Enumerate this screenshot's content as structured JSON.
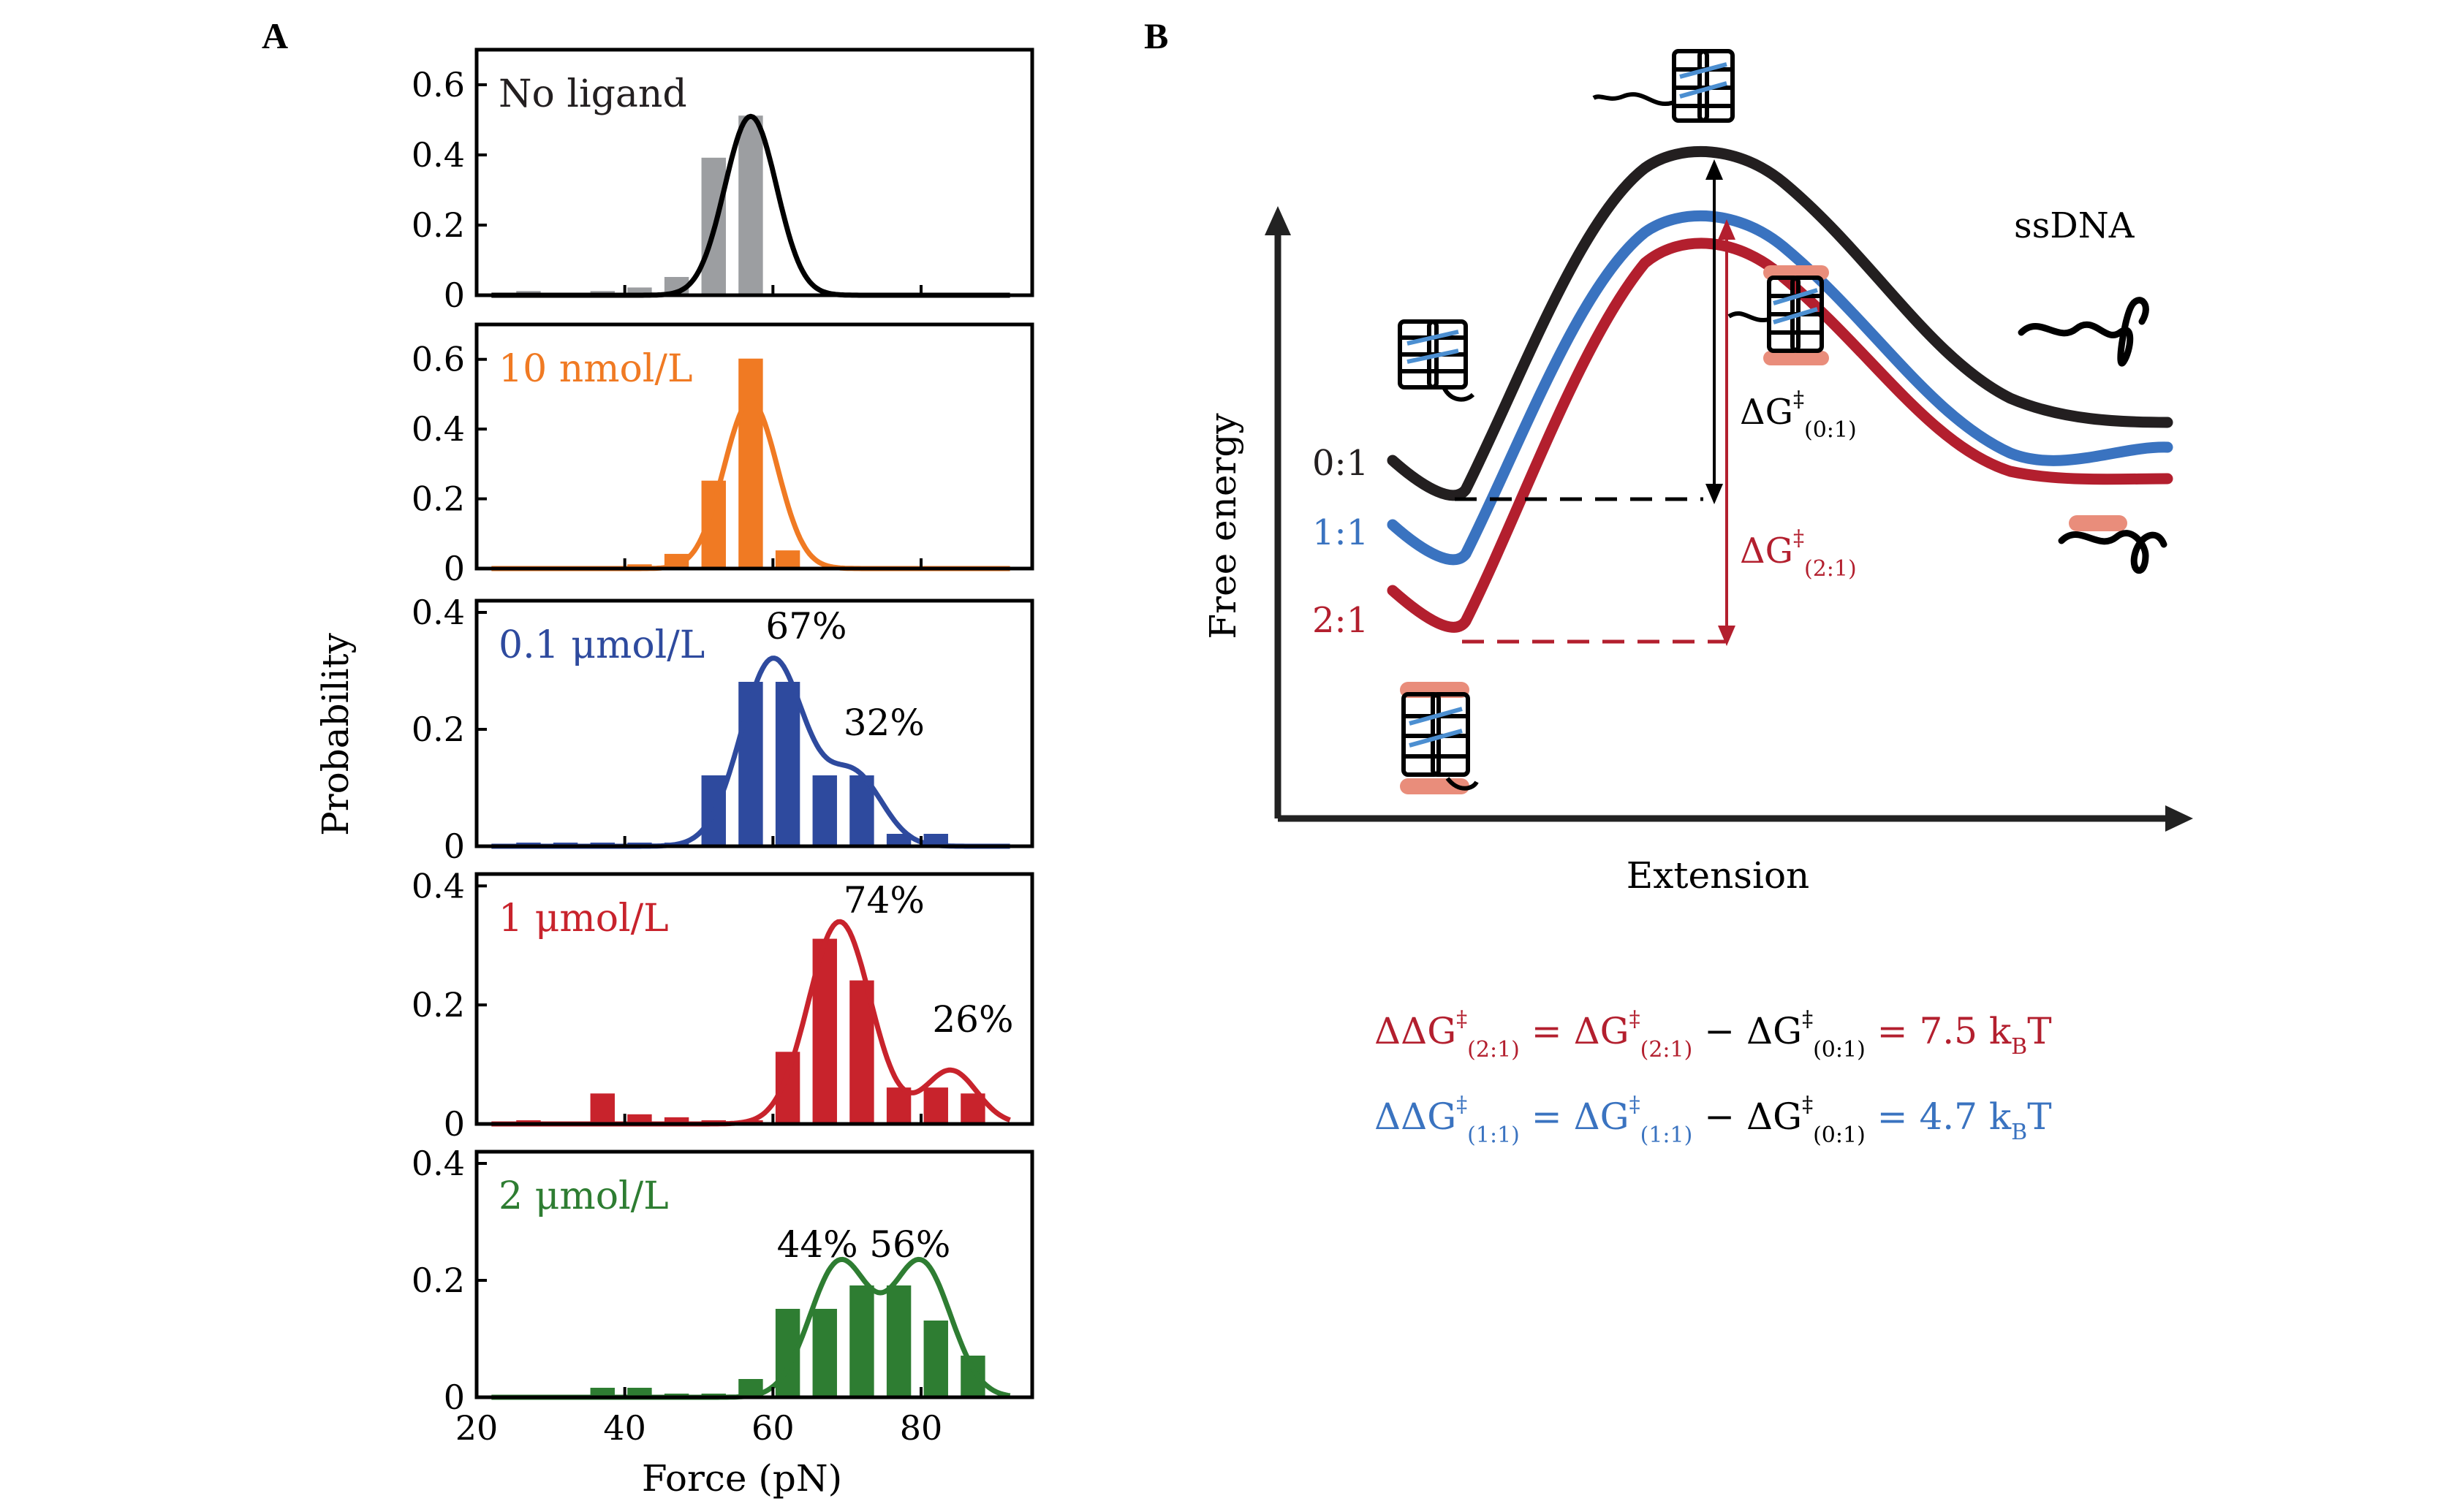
{
  "panels": {
    "a": "A",
    "b": "B"
  },
  "chart_data": [
    {
      "type": "bar",
      "label": "No ligand",
      "color": "#9c9ea1",
      "line_color": "#000000",
      "x": [
        27,
        37,
        42,
        47,
        52,
        57
      ],
      "values": [
        0.01,
        0.01,
        0.02,
        0.05,
        0.39,
        0.51
      ],
      "yticks": [
        "0",
        "0.2",
        "0.4",
        "0.6"
      ],
      "ylim": [
        0,
        0.7
      ],
      "fit": [
        {
          "mu": 57,
          "sigma": 3.5,
          "amp": 0.51
        }
      ],
      "annotations": []
    },
    {
      "type": "bar",
      "label": "10 nmol/L",
      "color": "#f07a23",
      "line_color": "#f07a23",
      "x": [
        42,
        47,
        52,
        57,
        62
      ],
      "values": [
        0.01,
        0.04,
        0.25,
        0.6,
        0.05
      ],
      "yticks": [
        "0",
        "0.2",
        "0.4",
        "0.6"
      ],
      "ylim": [
        0,
        0.7
      ],
      "fit": [
        {
          "mu": 57,
          "sigma": 3.6,
          "amp": 0.48
        }
      ],
      "annotations": []
    },
    {
      "type": "bar",
      "label": "0.1 μmol/L",
      "color": "#2e4a9e",
      "line_color": "#2e4a9e",
      "x": [
        27,
        32,
        37,
        42,
        47,
        52,
        57,
        62,
        67,
        72,
        77,
        82
      ],
      "values": [
        0.005,
        0.005,
        0.005,
        0.005,
        0.005,
        0.12,
        0.28,
        0.28,
        0.12,
        0.12,
        0.02,
        0.02
      ],
      "yticks": [
        "0",
        "0.2",
        "0.4"
      ],
      "ylim": [
        0,
        0.42
      ],
      "fit": [
        {
          "mu": 60,
          "sigma": 4.3,
          "amp": 0.32
        },
        {
          "mu": 71,
          "sigma": 3.8,
          "amp": 0.12
        }
      ],
      "annotations": [
        {
          "text": "67%",
          "x": 64.5,
          "y": 0.355
        },
        {
          "text": "32%",
          "x": 75,
          "y": 0.19
        }
      ]
    },
    {
      "type": "bar",
      "label": "1 μmol/L",
      "color": "#c8232c",
      "line_color": "#c8232c",
      "x": [
        27,
        37,
        42,
        47,
        52,
        57,
        62,
        67,
        72,
        77,
        82,
        87
      ],
      "values": [
        0.005,
        0.05,
        0.015,
        0.01,
        0.005,
        0.005,
        0.12,
        0.31,
        0.24,
        0.06,
        0.06,
        0.05
      ],
      "yticks": [
        "0",
        "0.2",
        "0.4"
      ],
      "ylim": [
        0,
        0.42
      ],
      "fit": [
        {
          "mu": 69,
          "sigma": 4.2,
          "amp": 0.34
        },
        {
          "mu": 84,
          "sigma": 3.5,
          "amp": 0.09
        }
      ],
      "annotations": [
        {
          "text": "74%",
          "x": 75,
          "y": 0.355
        },
        {
          "text": "26%",
          "x": 87,
          "y": 0.155
        }
      ]
    },
    {
      "type": "bar",
      "label": "2 μmol/L",
      "color": "#2e7d32",
      "line_color": "#2e7d32",
      "x": [
        37,
        42,
        47,
        52,
        57,
        62,
        67,
        72,
        77,
        82,
        87
      ],
      "values": [
        0.015,
        0.015,
        0.005,
        0.005,
        0.03,
        0.15,
        0.15,
        0.19,
        0.19,
        0.13,
        0.07
      ],
      "yticks": [
        "0",
        "0.2",
        "0.4"
      ],
      "ylim": [
        0,
        0.42
      ],
      "fit": [
        {
          "mu": 69,
          "sigma": 4.0,
          "amp": 0.23
        },
        {
          "mu": 80,
          "sigma": 4.0,
          "amp": 0.23
        }
      ],
      "annotations": [
        {
          "text": "44%",
          "x": 66,
          "y": 0.24
        },
        {
          "text": "56%",
          "x": 78.5,
          "y": 0.24
        }
      ]
    }
  ],
  "histogram_axes": {
    "xlabel": "Force (pN)",
    "ylabel": "Probability",
    "xticks": [
      "20",
      "40",
      "60",
      "80"
    ],
    "xlim": [
      20,
      95
    ]
  },
  "energy_diagram": {
    "ylabel": "Free energy",
    "xlabel": "Extension",
    "ssdna_label": "ssDNA",
    "curves": [
      {
        "ratio": "0:1",
        "color": "#231f20"
      },
      {
        "ratio": "1:1",
        "color": "#3a73c0"
      },
      {
        "ratio": "2:1",
        "color": "#b31f2e"
      }
    ],
    "dg_black": {
      "delta": "ΔG",
      "dagger": "‡",
      "sub": "(0:1)"
    },
    "dg_red": {
      "delta": "ΔG",
      "dagger": "‡",
      "sub": "(2:1)"
    }
  },
  "equations": [
    {
      "color_main": "#b31f2e",
      "lhs": "ΔΔG",
      "lhs_sub": "(2:1)",
      "eq1": " = ",
      "term1": "ΔG",
      "term1_sub": "(2:1)",
      "minus": " − ",
      "term2": "ΔG",
      "term2_sub": "(0:1)",
      "eq2": " = 7.5 k",
      "kb_sub": "B",
      "tail": "T"
    },
    {
      "color_main": "#3a73c0",
      "lhs": "ΔΔG",
      "lhs_sub": "(1:1)",
      "eq1": " = ",
      "term1": "ΔG",
      "term1_sub": "(1:1)",
      "minus": " − ",
      "term2": "ΔG",
      "term2_sub": "(0:1)",
      "eq2": " = 4.7 k",
      "kb_sub": "B",
      "tail": "T"
    }
  ],
  "dagger": "‡"
}
